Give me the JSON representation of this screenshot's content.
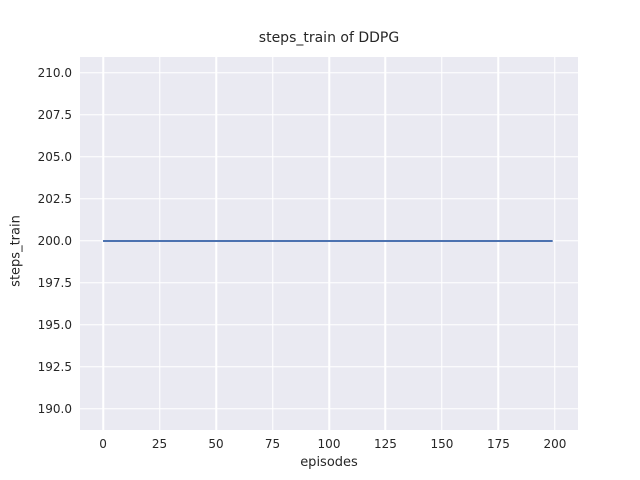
{
  "chart_data": {
    "type": "line",
    "title": "steps_train of DDPG",
    "xlabel": "episodes",
    "ylabel": "steps_train",
    "xlim": [
      -10.2,
      210.2
    ],
    "ylim": [
      188.75,
      210.95
    ],
    "xticks": [
      0,
      25,
      50,
      75,
      100,
      125,
      150,
      175,
      200
    ],
    "xtick_labels": [
      "0",
      "25",
      "50",
      "75",
      "100",
      "125",
      "150",
      "175",
      "200"
    ],
    "yticks": [
      190.0,
      192.5,
      195.0,
      197.5,
      200.0,
      202.5,
      205.0,
      207.5,
      210.0
    ],
    "ytick_labels": [
      "190.0",
      "192.5",
      "195.0",
      "197.5",
      "200.0",
      "202.5",
      "205.0",
      "207.5",
      "210.0"
    ],
    "grid": true,
    "legend_visible": false,
    "series": [
      {
        "x": [
          0,
          199
        ],
        "y": [
          200,
          200
        ],
        "color": "#4c72b0",
        "linewidth": 2
      }
    ],
    "styles": {
      "figure_bg": "#ffffff",
      "plot_bg": "#eaeaf2",
      "grid_color": "#ffffff",
      "text_color": "#262626"
    }
  }
}
